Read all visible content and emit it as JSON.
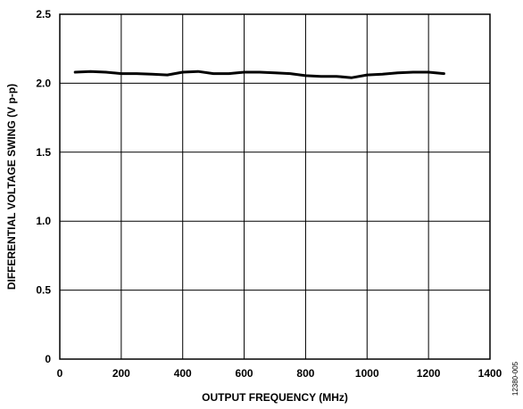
{
  "chart_data": {
    "type": "line",
    "xlabel": "OUTPUT FREQUENCY (MHz)",
    "ylabel": "DIFFERENTIAL VOLTAGE SWING (V p-p)",
    "xlim": [
      0,
      1400
    ],
    "ylim": [
      0,
      2.5
    ],
    "x_ticks": [
      0,
      200,
      400,
      600,
      800,
      1000,
      1200,
      1400
    ],
    "y_ticks": [
      0,
      0.5,
      1.0,
      1.5,
      2.0,
      2.5
    ],
    "x_tick_labels": [
      "0",
      "200",
      "400",
      "600",
      "800",
      "1000",
      "1200",
      "1400"
    ],
    "y_tick_labels": [
      "0",
      "0.5",
      "1.0",
      "1.5",
      "2.0",
      "2.5"
    ],
    "grid": true,
    "series": [
      {
        "color": "#000000",
        "x": [
          50,
          100,
          150,
          200,
          250,
          300,
          350,
          400,
          450,
          500,
          550,
          600,
          650,
          700,
          750,
          800,
          850,
          900,
          950,
          1000,
          1050,
          1100,
          1150,
          1200,
          1250
        ],
        "y": [
          2.08,
          2.085,
          2.08,
          2.07,
          2.07,
          2.065,
          2.06,
          2.08,
          2.085,
          2.07,
          2.07,
          2.08,
          2.08,
          2.075,
          2.07,
          2.055,
          2.05,
          2.05,
          2.04,
          2.06,
          2.065,
          2.075,
          2.08,
          2.08,
          2.07
        ]
      }
    ]
  },
  "figure_id": "12380-005"
}
